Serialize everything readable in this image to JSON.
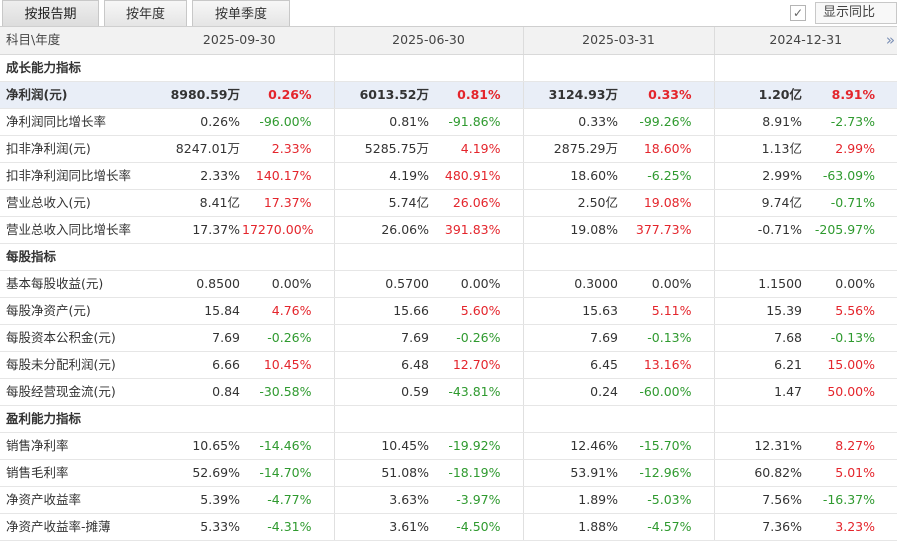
{
  "tabs": [
    {
      "label": "按报告期",
      "active": true
    },
    {
      "label": "按年度",
      "active": false
    },
    {
      "label": "按单季度",
      "active": false
    }
  ],
  "yoy_toggle": {
    "checked": true,
    "check_mark": "✓",
    "label": "显示同比"
  },
  "header": {
    "corner": "科目\\年度",
    "dates": [
      "2025-09-30",
      "2025-06-30",
      "2025-03-31",
      "2024-12-31"
    ],
    "more_icon": "»"
  },
  "colors": {
    "up": "#e4252c",
    "down": "#2f9a2f",
    "highlight_row": "#e9eef7"
  },
  "sections": [
    {
      "title": "成长能力指标",
      "rows": [
        {
          "name": "净利润(元)",
          "highlight": true,
          "cells": [
            {
              "value": "8980.59万",
              "yoy": "0.26%",
              "dir": "up"
            },
            {
              "value": "6013.52万",
              "yoy": "0.81%",
              "dir": "up"
            },
            {
              "value": "3124.93万",
              "yoy": "0.33%",
              "dir": "up"
            },
            {
              "value": "1.20亿",
              "yoy": "8.91%",
              "dir": "up"
            }
          ]
        },
        {
          "name": "净利润同比增长率",
          "cells": [
            {
              "value": "0.26%",
              "yoy": "-96.00%",
              "dir": "down"
            },
            {
              "value": "0.81%",
              "yoy": "-91.86%",
              "dir": "down"
            },
            {
              "value": "0.33%",
              "yoy": "-99.26%",
              "dir": "down"
            },
            {
              "value": "8.91%",
              "yoy": "-2.73%",
              "dir": "down"
            }
          ]
        },
        {
          "name": "扣非净利润(元)",
          "cells": [
            {
              "value": "8247.01万",
              "yoy": "2.33%",
              "dir": "up"
            },
            {
              "value": "5285.75万",
              "yoy": "4.19%",
              "dir": "up"
            },
            {
              "value": "2875.29万",
              "yoy": "18.60%",
              "dir": "up"
            },
            {
              "value": "1.13亿",
              "yoy": "2.99%",
              "dir": "up"
            }
          ]
        },
        {
          "name": "扣非净利润同比增长率",
          "cells": [
            {
              "value": "2.33%",
              "yoy": "140.17%",
              "dir": "up"
            },
            {
              "value": "4.19%",
              "yoy": "480.91%",
              "dir": "up"
            },
            {
              "value": "18.60%",
              "yoy": "-6.25%",
              "dir": "down"
            },
            {
              "value": "2.99%",
              "yoy": "-63.09%",
              "dir": "down"
            }
          ]
        },
        {
          "name": "营业总收入(元)",
          "cells": [
            {
              "value": "8.41亿",
              "yoy": "17.37%",
              "dir": "up"
            },
            {
              "value": "5.74亿",
              "yoy": "26.06%",
              "dir": "up"
            },
            {
              "value": "2.50亿",
              "yoy": "19.08%",
              "dir": "up"
            },
            {
              "value": "9.74亿",
              "yoy": "-0.71%",
              "dir": "down"
            }
          ]
        },
        {
          "name": "营业总收入同比增长率",
          "cells": [
            {
              "value": "17.37%",
              "yoy": "17270.00%",
              "dir": "up"
            },
            {
              "value": "26.06%",
              "yoy": "391.83%",
              "dir": "up"
            },
            {
              "value": "19.08%",
              "yoy": "377.73%",
              "dir": "up"
            },
            {
              "value": "-0.71%",
              "yoy": "-205.97%",
              "dir": "down"
            }
          ]
        }
      ]
    },
    {
      "title": "每股指标",
      "rows": [
        {
          "name": "基本每股收益(元)",
          "cells": [
            {
              "value": "0.8500",
              "yoy": "0.00%",
              "dir": "flat"
            },
            {
              "value": "0.5700",
              "yoy": "0.00%",
              "dir": "flat"
            },
            {
              "value": "0.3000",
              "yoy": "0.00%",
              "dir": "flat"
            },
            {
              "value": "1.1500",
              "yoy": "0.00%",
              "dir": "flat"
            }
          ]
        },
        {
          "name": "每股净资产(元)",
          "cells": [
            {
              "value": "15.84",
              "yoy": "4.76%",
              "dir": "up"
            },
            {
              "value": "15.66",
              "yoy": "5.60%",
              "dir": "up"
            },
            {
              "value": "15.63",
              "yoy": "5.11%",
              "dir": "up"
            },
            {
              "value": "15.39",
              "yoy": "5.56%",
              "dir": "up"
            }
          ]
        },
        {
          "name": "每股资本公积金(元)",
          "cells": [
            {
              "value": "7.69",
              "yoy": "-0.26%",
              "dir": "down"
            },
            {
              "value": "7.69",
              "yoy": "-0.26%",
              "dir": "down"
            },
            {
              "value": "7.69",
              "yoy": "-0.13%",
              "dir": "down"
            },
            {
              "value": "7.68",
              "yoy": "-0.13%",
              "dir": "down"
            }
          ]
        },
        {
          "name": "每股未分配利润(元)",
          "cells": [
            {
              "value": "6.66",
              "yoy": "10.45%",
              "dir": "up"
            },
            {
              "value": "6.48",
              "yoy": "12.70%",
              "dir": "up"
            },
            {
              "value": "6.45",
              "yoy": "13.16%",
              "dir": "up"
            },
            {
              "value": "6.21",
              "yoy": "15.00%",
              "dir": "up"
            }
          ]
        },
        {
          "name": "每股经营现金流(元)",
          "cells": [
            {
              "value": "0.84",
              "yoy": "-30.58%",
              "dir": "down"
            },
            {
              "value": "0.59",
              "yoy": "-43.81%",
              "dir": "down"
            },
            {
              "value": "0.24",
              "yoy": "-60.00%",
              "dir": "down"
            },
            {
              "value": "1.47",
              "yoy": "50.00%",
              "dir": "up"
            }
          ]
        }
      ]
    },
    {
      "title": "盈利能力指标",
      "rows": [
        {
          "name": "销售净利率",
          "cells": [
            {
              "value": "10.65%",
              "yoy": "-14.46%",
              "dir": "down"
            },
            {
              "value": "10.45%",
              "yoy": "-19.92%",
              "dir": "down"
            },
            {
              "value": "12.46%",
              "yoy": "-15.70%",
              "dir": "down"
            },
            {
              "value": "12.31%",
              "yoy": "8.27%",
              "dir": "up"
            }
          ]
        },
        {
          "name": "销售毛利率",
          "cells": [
            {
              "value": "52.69%",
              "yoy": "-14.70%",
              "dir": "down"
            },
            {
              "value": "51.08%",
              "yoy": "-18.19%",
              "dir": "down"
            },
            {
              "value": "53.91%",
              "yoy": "-12.96%",
              "dir": "down"
            },
            {
              "value": "60.82%",
              "yoy": "5.01%",
              "dir": "up"
            }
          ]
        },
        {
          "name": "净资产收益率",
          "cells": [
            {
              "value": "5.39%",
              "yoy": "-4.77%",
              "dir": "down"
            },
            {
              "value": "3.63%",
              "yoy": "-3.97%",
              "dir": "down"
            },
            {
              "value": "1.89%",
              "yoy": "-5.03%",
              "dir": "down"
            },
            {
              "value": "7.56%",
              "yoy": "-16.37%",
              "dir": "down"
            }
          ]
        },
        {
          "name": "净资产收益率-摊薄",
          "cells": [
            {
              "value": "5.33%",
              "yoy": "-4.31%",
              "dir": "down"
            },
            {
              "value": "3.61%",
              "yoy": "-4.50%",
              "dir": "down"
            },
            {
              "value": "1.88%",
              "yoy": "-4.57%",
              "dir": "down"
            },
            {
              "value": "7.36%",
              "yoy": "3.23%",
              "dir": "up"
            }
          ]
        }
      ]
    }
  ]
}
